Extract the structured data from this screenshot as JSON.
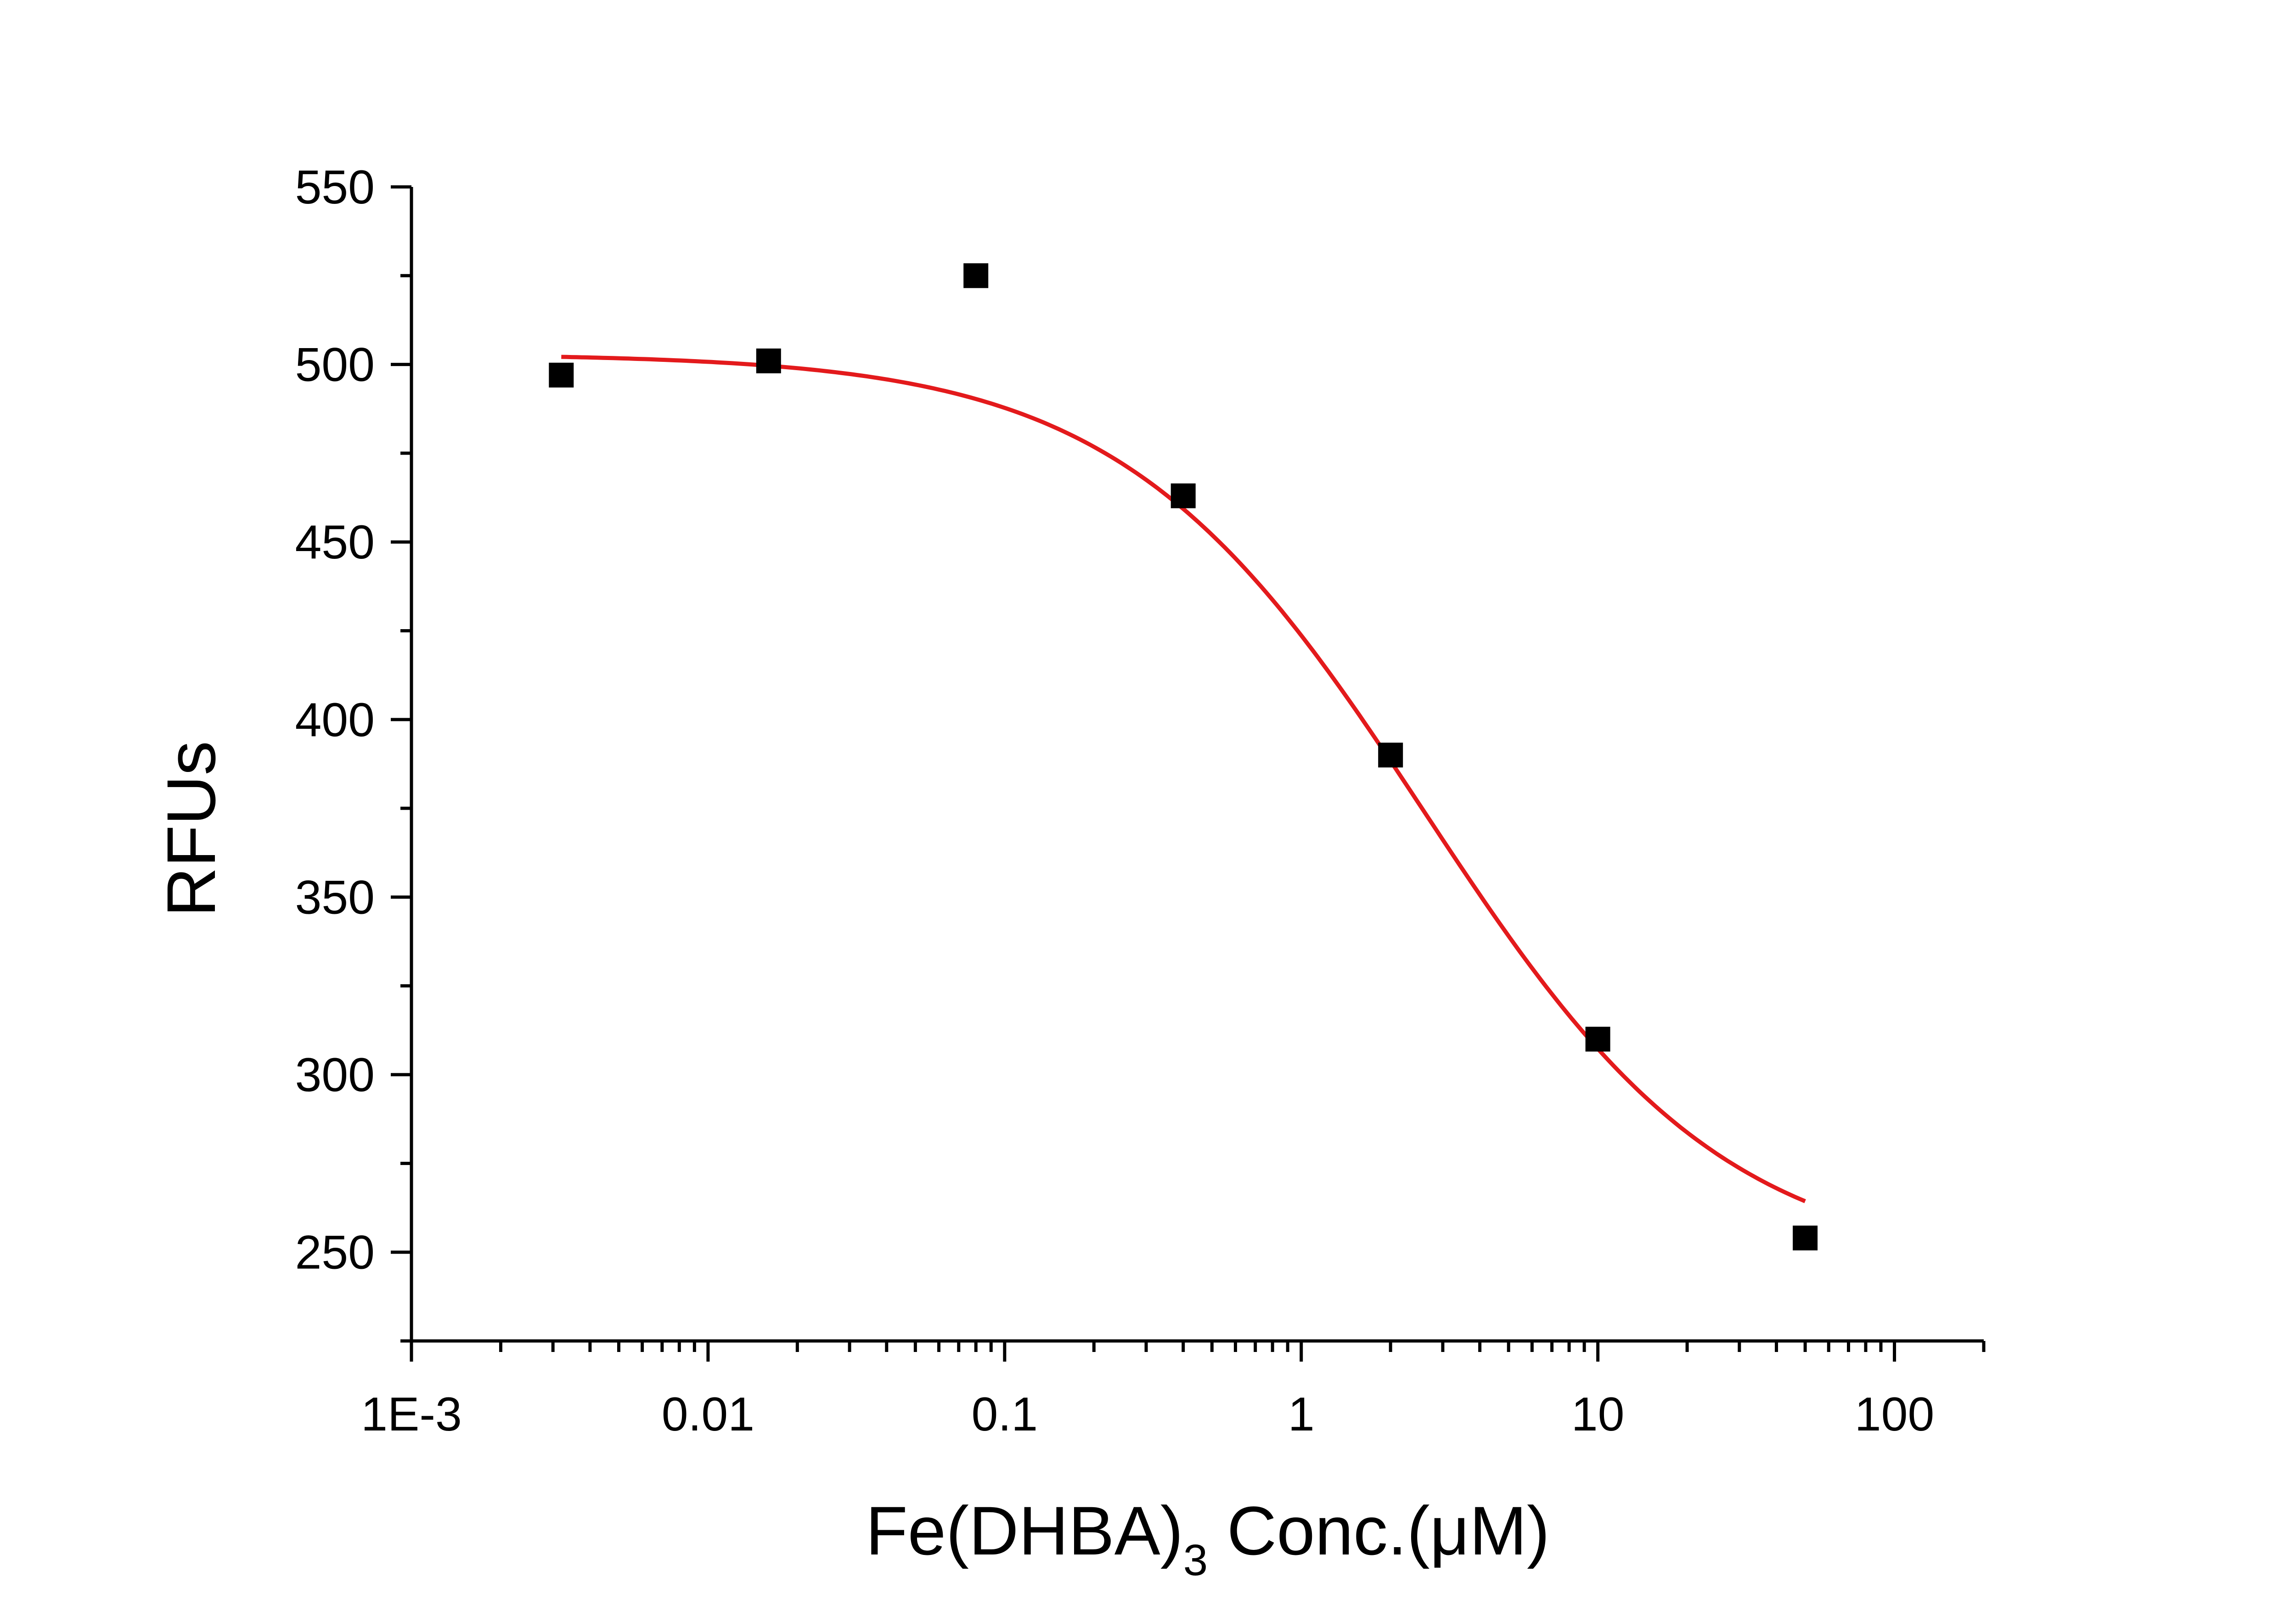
{
  "chart_data": {
    "type": "scatter",
    "title": "",
    "xlabel": "Fe(DHBA)",
    "xlabel_subscript": "3",
    "xlabel_suffix": " Conc.(μM)",
    "ylabel": "RFUs",
    "xscale": "log",
    "xlim": [
      0.001,
      200
    ],
    "ylim": [
      225,
      550
    ],
    "grid": false,
    "legend": "none",
    "x_ticks": [
      {
        "value": 0.001,
        "label": "1E-3"
      },
      {
        "value": 0.01,
        "label": "0.01"
      },
      {
        "value": 0.1,
        "label": "0.1"
      },
      {
        "value": 1,
        "label": "1"
      },
      {
        "value": 10,
        "label": "10"
      },
      {
        "value": 100,
        "label": "100"
      }
    ],
    "y_ticks": [
      {
        "value": 250,
        "label": "250"
      },
      {
        "value": 300,
        "label": "300"
      },
      {
        "value": 350,
        "label": "350"
      },
      {
        "value": 400,
        "label": "400"
      },
      {
        "value": 450,
        "label": "450"
      },
      {
        "value": 500,
        "label": "500"
      },
      {
        "value": 550,
        "label": "550"
      }
    ],
    "series": [
      {
        "type": "scatter",
        "color": "#000000",
        "marker": "square",
        "x": [
          0.0032,
          0.016,
          0.08,
          0.4,
          2,
          10,
          50
        ],
        "y": [
          497,
          501,
          525,
          463,
          390,
          310,
          254
        ]
      },
      {
        "type": "fit-line",
        "color": "#e31a1c",
        "model": "logistic",
        "x_range": [
          0.0032,
          50
        ],
        "params": {
          "top": 503,
          "bottom": 245,
          "ec50": 2.6,
          "hill": 0.85
        }
      }
    ]
  }
}
